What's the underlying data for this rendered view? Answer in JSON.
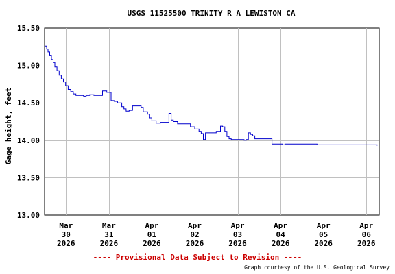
{
  "chart_data": {
    "type": "line",
    "title": "USGS 11525500 TRINITY R A LEWISTON CA",
    "ylabel": "Gage height, feet",
    "xlabel": "",
    "ylim": [
      13.0,
      15.5
    ],
    "y_ticks": [
      "13.00",
      "13.50",
      "14.00",
      "14.50",
      "15.00",
      "15.50"
    ],
    "x_range_days": [
      -0.5,
      7.3
    ],
    "x_ticks": [
      {
        "day": 0,
        "lines": [
          "Mar",
          "30",
          "2026"
        ]
      },
      {
        "day": 1,
        "lines": [
          "Mar",
          "31",
          "2026"
        ]
      },
      {
        "day": 2,
        "lines": [
          "Apr",
          "01",
          "2026"
        ]
      },
      {
        "day": 3,
        "lines": [
          "Apr",
          "02",
          "2026"
        ]
      },
      {
        "day": 4,
        "lines": [
          "Apr",
          "03",
          "2026"
        ]
      },
      {
        "day": 5,
        "lines": [
          "Apr",
          "04",
          "2026"
        ]
      },
      {
        "day": 6,
        "lines": [
          "Apr",
          "05",
          "2026"
        ]
      },
      {
        "day": 7,
        "lines": [
          "Apr",
          "06",
          "2026"
        ]
      }
    ],
    "grid": true,
    "line_color": "#0000cc",
    "series": [
      {
        "name": "",
        "x": [
          -0.49,
          -0.45,
          -0.42,
          -0.38,
          -0.34,
          -0.3,
          -0.26,
          -0.21,
          -0.16,
          -0.11,
          -0.06,
          -0.01,
          0.05,
          0.11,
          0.17,
          0.23,
          0.29,
          0.35,
          0.41,
          0.47,
          0.55,
          0.65,
          0.75,
          0.85,
          0.95,
          1.05,
          1.12,
          1.2,
          1.3,
          1.35,
          1.4,
          1.47,
          1.55,
          1.65,
          1.75,
          1.8,
          1.9,
          1.95,
          2.0,
          2.1,
          2.2,
          2.3,
          2.35,
          2.4,
          2.45,
          2.5,
          2.6,
          2.7,
          2.8,
          2.9,
          3.0,
          3.1,
          3.15,
          3.2,
          3.25,
          3.3,
          3.4,
          3.5,
          3.6,
          3.65,
          3.7,
          3.75,
          3.8,
          3.85,
          3.9,
          3.95,
          4.0,
          4.05,
          4.1,
          4.15,
          4.2,
          4.25,
          4.3,
          4.35,
          4.4,
          4.5,
          4.6,
          4.7,
          4.8,
          4.9,
          5.0,
          5.05,
          5.1,
          5.15,
          5.2,
          5.25,
          5.3,
          5.35,
          5.4,
          5.5,
          5.6,
          5.7,
          5.8,
          5.85,
          5.9,
          6.0,
          6.1,
          6.2,
          6.3,
          6.5,
          6.7,
          6.9,
          7.1,
          7.2,
          7.25
        ],
        "y": [
          15.26,
          15.22,
          15.18,
          15.13,
          15.08,
          15.04,
          14.98,
          14.93,
          14.87,
          14.82,
          14.78,
          14.73,
          14.68,
          14.65,
          14.62,
          14.6,
          14.6,
          14.6,
          14.59,
          14.6,
          14.61,
          14.6,
          14.6,
          14.66,
          14.64,
          14.53,
          14.52,
          14.5,
          14.45,
          14.42,
          14.39,
          14.4,
          14.46,
          14.46,
          14.44,
          14.38,
          14.35,
          14.3,
          14.26,
          14.23,
          14.24,
          14.24,
          14.24,
          14.36,
          14.27,
          14.25,
          14.22,
          14.22,
          14.22,
          14.18,
          14.15,
          14.12,
          14.09,
          14.01,
          14.1,
          14.1,
          14.1,
          14.12,
          14.19,
          14.18,
          14.12,
          14.05,
          14.02,
          14.01,
          14.01,
          14.01,
          14.01,
          14.01,
          14.01,
          14.0,
          14.01,
          14.1,
          14.08,
          14.06,
          14.02,
          14.02,
          14.02,
          14.02,
          13.95,
          13.95,
          13.95,
          13.94,
          13.95,
          13.95,
          13.95,
          13.95,
          13.95,
          13.95,
          13.95,
          13.95,
          13.95,
          13.95,
          13.95,
          13.94,
          13.94,
          13.94,
          13.94,
          13.94,
          13.94,
          13.94,
          13.94,
          13.94,
          13.94,
          13.94,
          13.93
        ]
      }
    ]
  },
  "footer": {
    "provisional_note": "---- Provisional Data Subject to Revision ----",
    "provisional_color": "#cc0000",
    "credit": "Graph courtesy of the U.S. Geological Survey"
  }
}
